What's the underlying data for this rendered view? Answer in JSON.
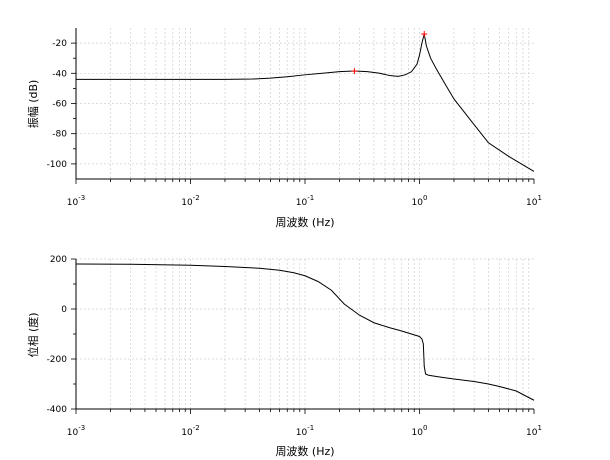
{
  "chart_data": [
    {
      "type": "line",
      "xlabel": "周波数 (Hz)",
      "ylabel": "振幅 (dB)",
      "xscale": "log",
      "xlim": [
        0.001,
        10
      ],
      "ylim": [
        -110,
        -10
      ],
      "yticks": [
        -20,
        -40,
        -60,
        -80,
        -100
      ],
      "xtick_bases": [
        "10",
        "10",
        "10",
        "10",
        "10"
      ],
      "xtick_exps": [
        "-3",
        "-2",
        "-1",
        "0",
        "1"
      ],
      "grid": true,
      "line_color": "#000000",
      "marker_color": "#ff0000",
      "series": [
        {
          "x": [
            0.001,
            0.004,
            0.01,
            0.02,
            0.035,
            0.05,
            0.07,
            0.1,
            0.15,
            0.2,
            0.27,
            0.35,
            0.45,
            0.55,
            0.65,
            0.75,
            0.85,
            0.95,
            1.0,
            1.05,
            1.1,
            1.15,
            1.25,
            1.4,
            1.7,
            2.0,
            3.0,
            4.0,
            6.0,
            10.0
          ],
          "y": [
            -44,
            -44,
            -44,
            -44,
            -43.8,
            -43.2,
            -42.3,
            -41,
            -39.8,
            -38.9,
            -38.5,
            -38.9,
            -40,
            -41.5,
            -42,
            -41,
            -39,
            -34,
            -28,
            -20,
            -14,
            -22,
            -30,
            -37,
            -48,
            -57,
            -74,
            -86,
            -95,
            -105
          ]
        }
      ],
      "markers": [
        {
          "x": 0.27,
          "y": -38.5
        },
        {
          "x": 1.1,
          "y": -14
        }
      ]
    },
    {
      "type": "line",
      "xlabel": "周波数 (Hz)",
      "ylabel": "位相 (度)",
      "xscale": "log",
      "xlim": [
        0.001,
        10
      ],
      "ylim": [
        -400,
        200
      ],
      "yticks": [
        200,
        0,
        -200,
        -400
      ],
      "xtick_bases": [
        "10",
        "10",
        "10",
        "10",
        "10"
      ],
      "xtick_exps": [
        "-3",
        "-2",
        "-1",
        "0",
        "1"
      ],
      "grid": true,
      "line_color": "#000000",
      "series": [
        {
          "x": [
            0.001,
            0.003,
            0.01,
            0.02,
            0.04,
            0.06,
            0.08,
            0.1,
            0.13,
            0.17,
            0.22,
            0.3,
            0.4,
            0.55,
            0.7,
            0.85,
            1.0,
            1.05,
            1.08,
            1.1,
            1.13,
            1.2,
            1.5,
            2.0,
            3.0,
            4.0,
            5.0,
            7.0,
            10.0
          ],
          "y": [
            180,
            179,
            175,
            170,
            163,
            155,
            145,
            133,
            110,
            75,
            20,
            -25,
            -55,
            -75,
            -88,
            -100,
            -110,
            -120,
            -140,
            -230,
            -260,
            -265,
            -272,
            -280,
            -290,
            -300,
            -310,
            -328,
            -365
          ]
        }
      ]
    }
  ]
}
